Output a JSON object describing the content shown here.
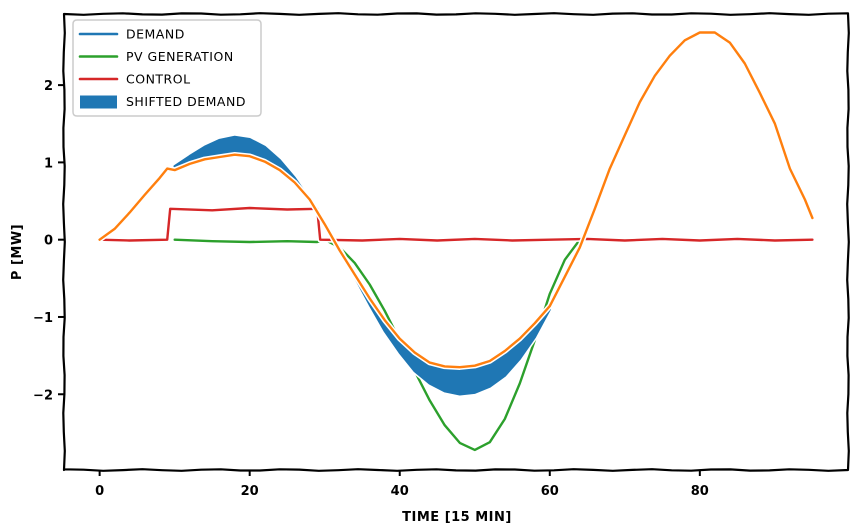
{
  "chart_data": {
    "type": "line",
    "title": "",
    "xlabel": "TIME [15 MIN]",
    "ylabel": "P [MW]",
    "xlim": [
      -4.75,
      99.75
    ],
    "ylim": [
      -2.98,
      2.92
    ],
    "xticks": [
      0,
      20,
      40,
      60,
      80
    ],
    "yticks": [
      -2,
      -1,
      0,
      1,
      2
    ],
    "grid": false,
    "legend_position": "top-left",
    "colors": {
      "demand": "#1f77b4",
      "pv_generation": "#2ca02c",
      "control": "#d62728",
      "shifted_demand": "#1f77b4",
      "net": "#ff7f0e"
    },
    "series": [
      {
        "name": "DEMAND",
        "x": [
          10,
          12,
          14,
          16,
          18,
          20,
          22,
          24,
          26,
          28,
          29,
          30,
          32,
          34,
          36,
          38,
          40,
          42,
          44,
          46,
          48,
          50,
          52,
          54,
          56,
          58,
          60
        ],
        "y": [
          0.95,
          1.08,
          1.2,
          1.29,
          1.33,
          1.3,
          1.2,
          1.03,
          0.8,
          0.52,
          0.36,
          0.2,
          -0.12,
          -0.48,
          -0.84,
          -1.18,
          -1.46,
          -1.7,
          -1.86,
          -1.96,
          -2.0,
          -1.98,
          -1.9,
          -1.76,
          -1.54,
          -1.26,
          -0.9
        ]
      },
      {
        "name": "PV GENERATION",
        "x": [
          10,
          15,
          20,
          25,
          29,
          30,
          32,
          34,
          36,
          38,
          40,
          42,
          44,
          46,
          48,
          50,
          52,
          54,
          56,
          58,
          60,
          62,
          64
        ],
        "y": [
          0.0,
          -0.02,
          -0.03,
          -0.02,
          -0.03,
          0.0,
          -0.1,
          -0.3,
          -0.58,
          -0.92,
          -1.3,
          -1.7,
          -2.08,
          -2.4,
          -2.63,
          -2.72,
          -2.62,
          -2.32,
          -1.86,
          -1.3,
          -0.7,
          -0.26,
          0.0
        ]
      },
      {
        "name": "CONTROL",
        "x": [
          0,
          4,
          9,
          9.4,
          15,
          20,
          25,
          29,
          29.4,
          35,
          40,
          45,
          50,
          55,
          60,
          65,
          70,
          75,
          80,
          85,
          90,
          95
        ],
        "y": [
          0.0,
          -0.01,
          0.0,
          0.4,
          0.38,
          0.41,
          0.39,
          0.4,
          0.0,
          -0.01,
          0.01,
          -0.01,
          0.01,
          -0.01,
          0.0,
          0.01,
          -0.01,
          0.01,
          -0.01,
          0.01,
          -0.01,
          0.0
        ]
      },
      {
        "name": "",
        "x": [
          0,
          2,
          4,
          6,
          8,
          9,
          10,
          12,
          14,
          16,
          18,
          20,
          22,
          24,
          26,
          28,
          30,
          32,
          34,
          36,
          38,
          40,
          42,
          44,
          46,
          48,
          50,
          52,
          54,
          56,
          58,
          60,
          62,
          64,
          66,
          68,
          70,
          72,
          74,
          76,
          78,
          80,
          82,
          84,
          86,
          88,
          90,
          92,
          94,
          95
        ],
        "y": [
          0.0,
          0.14,
          0.35,
          0.58,
          0.8,
          0.92,
          0.9,
          0.98,
          1.04,
          1.07,
          1.1,
          1.08,
          1.01,
          0.9,
          0.74,
          0.52,
          0.2,
          -0.14,
          -0.45,
          -0.76,
          -1.04,
          -1.28,
          -1.46,
          -1.59,
          -1.64,
          -1.65,
          -1.63,
          -1.57,
          -1.44,
          -1.28,
          -1.08,
          -0.86,
          -0.48,
          -0.1,
          0.4,
          0.92,
          1.35,
          1.78,
          2.12,
          2.38,
          2.58,
          2.68,
          2.68,
          2.55,
          2.28,
          1.9,
          1.5,
          0.92,
          0.52,
          0.28
        ]
      }
    ],
    "band": {
      "name": "SHIFTED DEMAND",
      "x": [
        10,
        12,
        14,
        16,
        18,
        20,
        22,
        24,
        26,
        28,
        30,
        32,
        34,
        36,
        38,
        40,
        42,
        44,
        46,
        48,
        50,
        52,
        54,
        56,
        58,
        60
      ],
      "y_upper": [
        0.95,
        1.08,
        1.2,
        1.29,
        1.33,
        1.3,
        1.2,
        1.03,
        0.8,
        0.52,
        0.2,
        -0.14,
        -0.45,
        -0.76,
        -1.04,
        -1.28,
        -1.46,
        -1.59,
        -1.64,
        -1.65,
        -1.63,
        -1.57,
        -1.44,
        -1.28,
        -1.08,
        -0.86
      ],
      "y_lower": [
        0.9,
        0.98,
        1.04,
        1.07,
        1.1,
        1.08,
        1.01,
        0.9,
        0.74,
        0.52,
        0.2,
        -0.12,
        -0.48,
        -0.84,
        -1.18,
        -1.46,
        -1.7,
        -1.86,
        -1.96,
        -2.0,
        -1.98,
        -1.9,
        -1.76,
        -1.54,
        -1.26,
        -0.9
      ]
    },
    "legend": [
      "DEMAND",
      "PV GENERATION",
      "CONTROL",
      "SHIFTED DEMAND"
    ]
  }
}
